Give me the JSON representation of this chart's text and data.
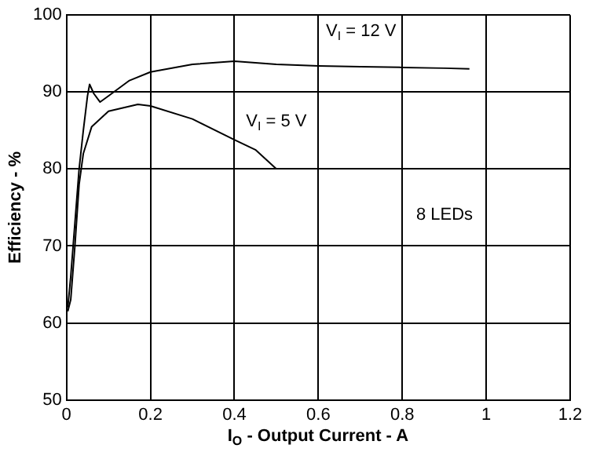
{
  "chart_data": {
    "type": "line",
    "xlabel": "I$_{O}$ - Output Current - A",
    "ylabel": "Efficiency - %",
    "xlim": [
      0,
      1.2
    ],
    "xticks": [
      0,
      0.2,
      0.4,
      0.6,
      0.8,
      1,
      1.2
    ],
    "ylim": [
      50,
      100
    ],
    "yticks": [
      50,
      60,
      70,
      80,
      90,
      100
    ],
    "grid": true,
    "legend": false,
    "marker": "none",
    "line_style": "solid",
    "annotations": [
      "8 LEDs"
    ],
    "series": [
      {
        "name": "V$_{I}$ = 12 V",
        "color": "#000000",
        "x": [
          0.003,
          0.01,
          0.02,
          0.03,
          0.04,
          0.05,
          0.055,
          0.065,
          0.08,
          0.1,
          0.15,
          0.2,
          0.3,
          0.4,
          0.5,
          0.6,
          0.7,
          0.8,
          0.9,
          0.96
        ],
        "values": [
          62,
          66,
          73,
          80,
          85,
          89.5,
          91,
          89.8,
          88.7,
          89.5,
          91.5,
          92.6,
          93.6,
          94,
          93.6,
          93.4,
          93.3,
          93.2,
          93.1,
          93
        ]
      },
      {
        "name": "V$_{I}$ = 5 V",
        "color": "#000000",
        "x": [
          0.003,
          0.01,
          0.02,
          0.03,
          0.04,
          0.06,
          0.1,
          0.17,
          0.2,
          0.3,
          0.4,
          0.45,
          0.5
        ],
        "values": [
          61.5,
          63,
          70,
          78,
          82,
          85.5,
          87.5,
          88.4,
          88.2,
          86.5,
          83.8,
          82.5,
          80
        ]
      }
    ]
  }
}
